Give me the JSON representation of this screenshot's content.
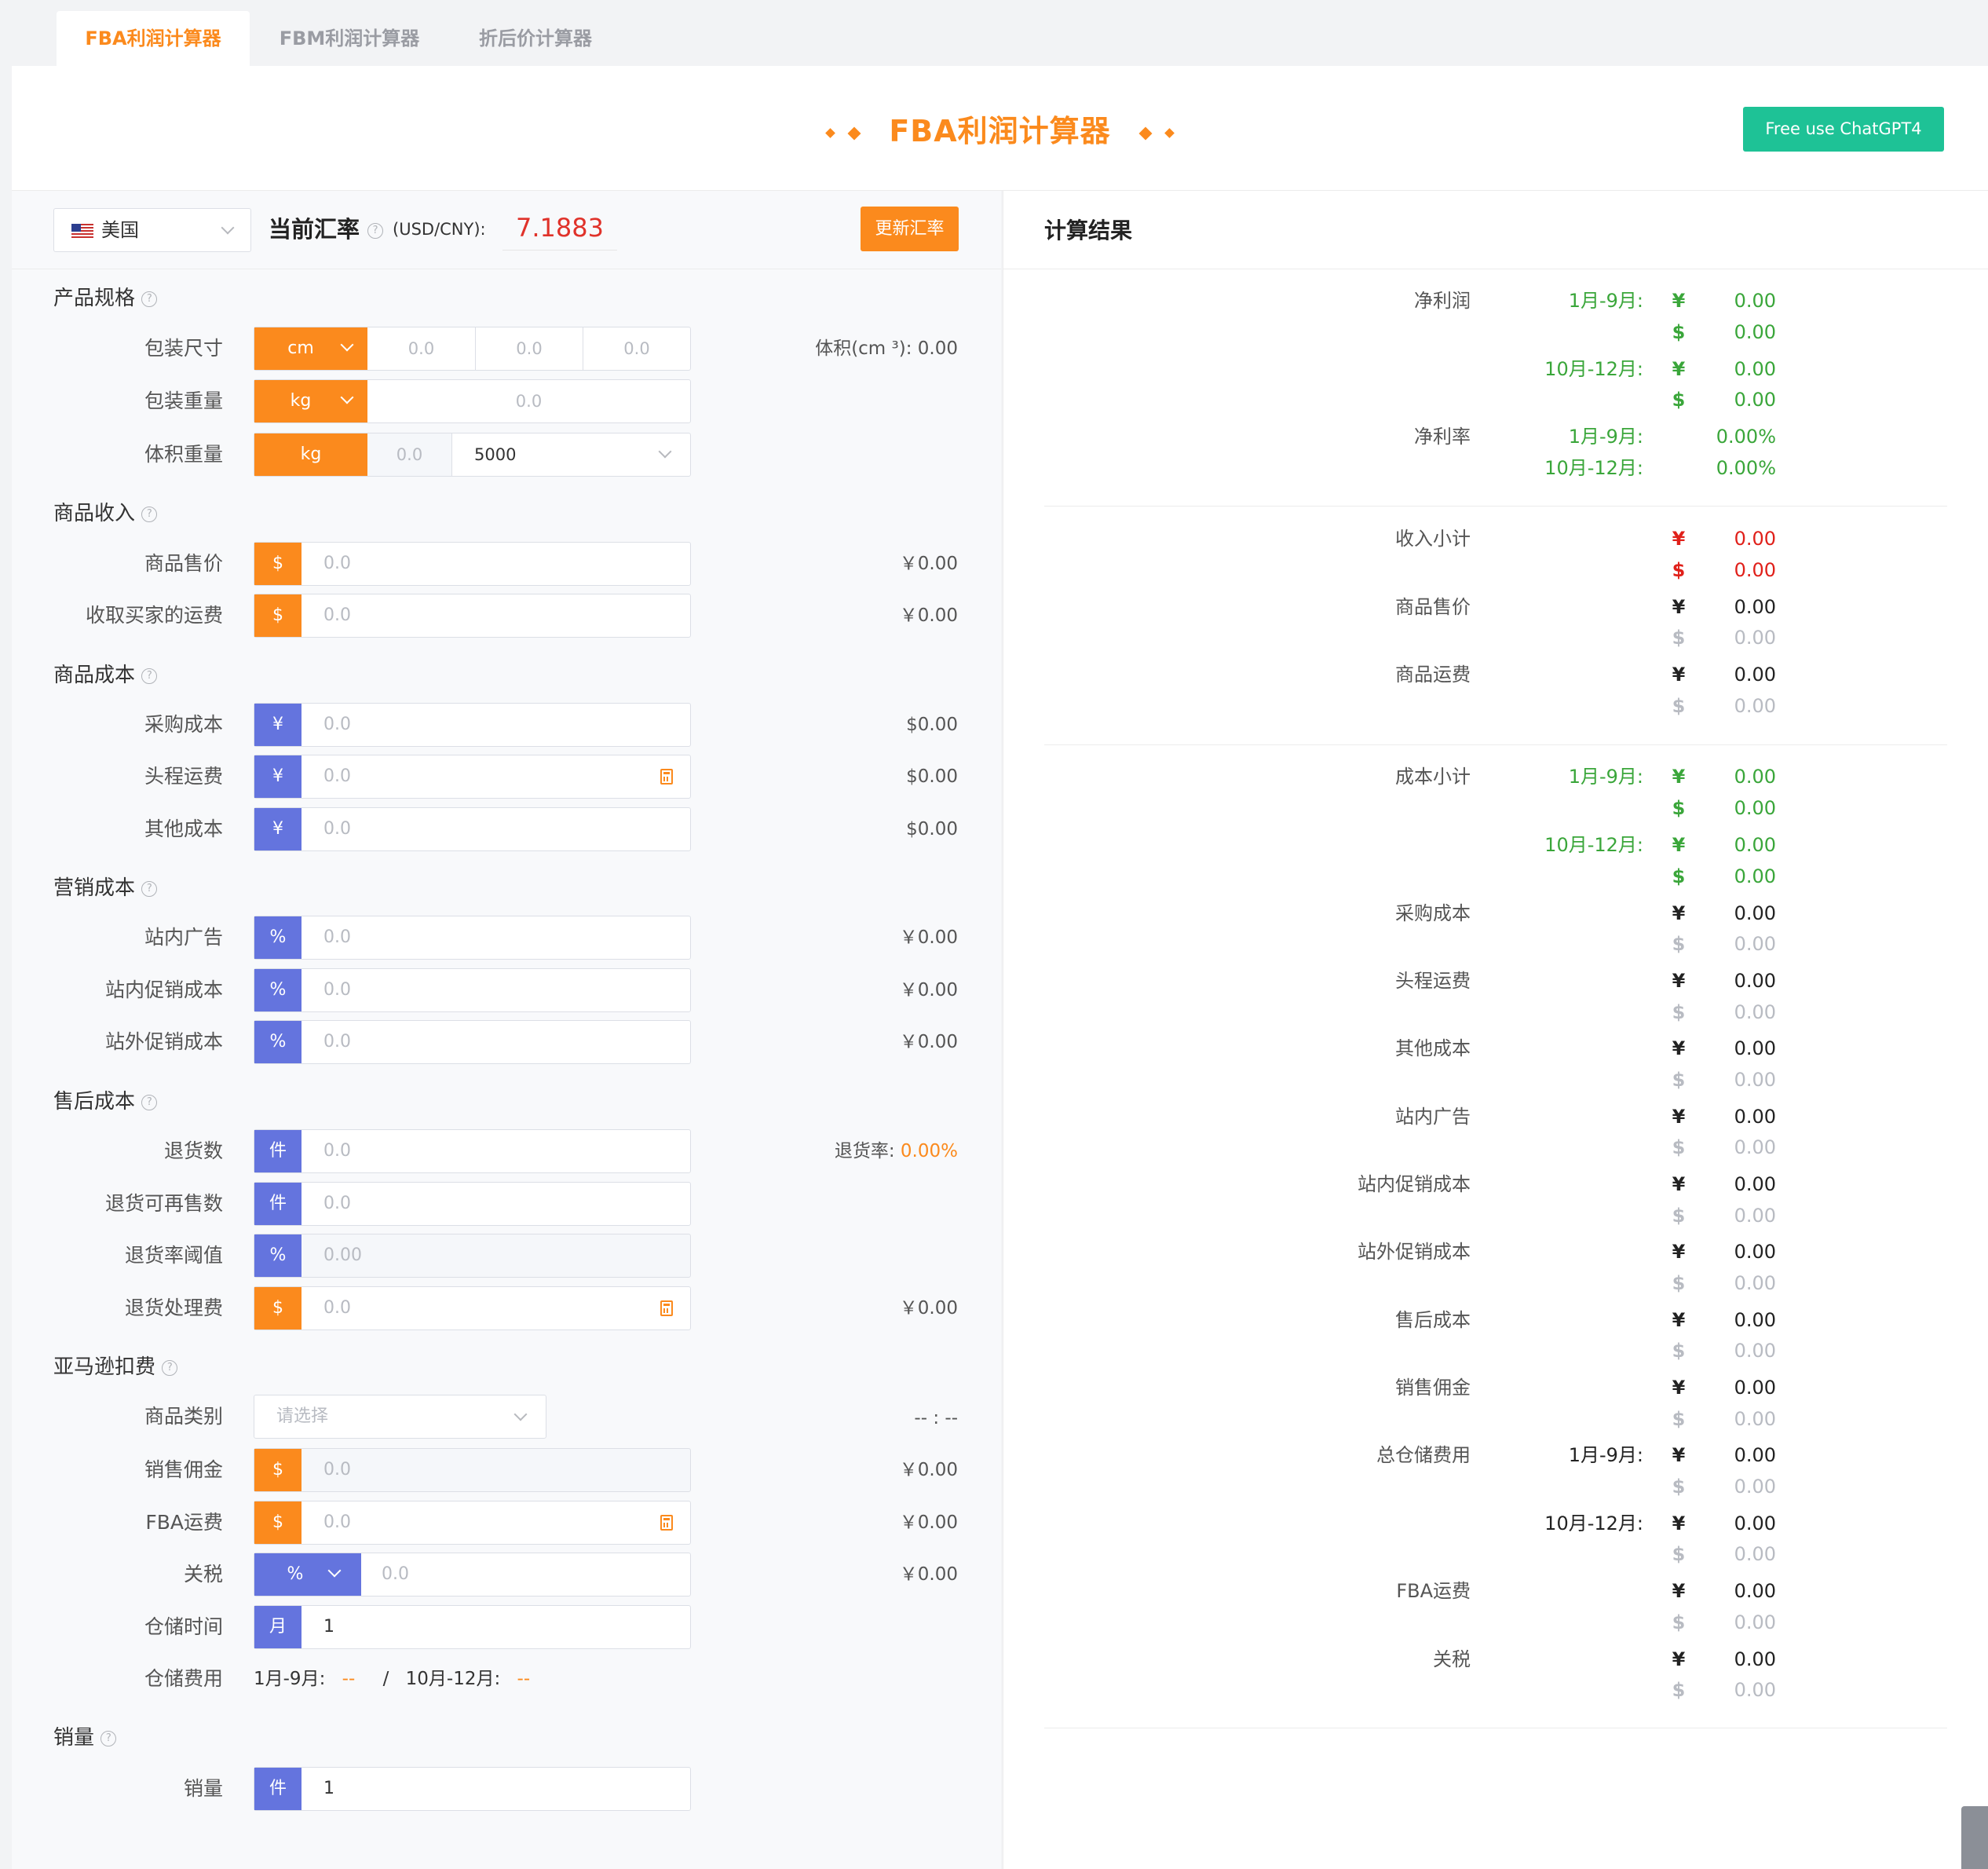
{
  "tabs": [
    {
      "label": "FBA利润计算器"
    },
    {
      "label": "FBM利润计算器"
    },
    {
      "label": "折后价计算器"
    }
  ],
  "header": {
    "title": "FBA利润计算器",
    "gpt_button": "Free use ChatGPT4"
  },
  "rate": {
    "country": "美国",
    "label": "当前汇率",
    "unit": "(USD/CNY):",
    "value": "7.1883",
    "update_button": "更新汇率"
  },
  "results": {
    "title": "计算结果"
  },
  "form": {
    "spec": {
      "title": "产品规格",
      "package_size": {
        "label": "包装尺寸",
        "unit": "cm",
        "values": [
          "0.0",
          "0.0",
          "0.0"
        ],
        "volume": "体积(cm ³): 0.00"
      },
      "package_weight": {
        "label": "包装重量",
        "unit": "kg",
        "value": "0.0"
      },
      "volume_weight": {
        "label": "体积重量",
        "unit": "kg",
        "value": "0.0",
        "divisor": "5000"
      }
    },
    "income": {
      "title": "商品收入",
      "rows": [
        {
          "label": "商品售价",
          "symbol": "$",
          "placeholder": "0.0",
          "result": "￥0.00"
        },
        {
          "label": "收取买家的运费",
          "symbol": "$",
          "placeholder": "0.0",
          "result": "￥0.00"
        }
      ]
    },
    "cost": {
      "title": "商品成本",
      "rows": [
        {
          "label": "采购成本",
          "symbol": "¥",
          "placeholder": "0.0",
          "result": "$0.00"
        },
        {
          "label": "头程运费",
          "symbol": "¥",
          "placeholder": "0.0",
          "result": "$0.00"
        },
        {
          "label": "其他成本",
          "symbol": "¥",
          "placeholder": "0.0",
          "result": "$0.00"
        }
      ]
    },
    "marketing": {
      "title": "营销成本",
      "rows": [
        {
          "label": "站内广告",
          "symbol": "%",
          "placeholder": "0.0",
          "result": "￥0.00"
        },
        {
          "label": "站内促销成本",
          "symbol": "%",
          "placeholder": "0.0",
          "result": "￥0.00"
        },
        {
          "label": "站外促销成本",
          "symbol": "%",
          "placeholder": "0.0",
          "result": "￥0.00"
        }
      ]
    },
    "after_sales": {
      "title": "售后成本",
      "rows": [
        {
          "label": "退货数",
          "symbol": "件",
          "placeholder": "0.0"
        },
        {
          "label": "退货可再售数",
          "symbol": "件",
          "placeholder": "0.0"
        },
        {
          "label": "退货率阈值",
          "symbol": "%",
          "placeholder": "0.00"
        },
        {
          "label": "退货处理费",
          "symbol": "$",
          "placeholder": "0.0",
          "result": "￥0.00"
        }
      ],
      "return_rate_label": "退货率:",
      "return_rate_value": "0.00%"
    },
    "amazon": {
      "title": "亚马逊扣费",
      "category": {
        "label": "商品类别",
        "placeholder": "请选择",
        "result": "-- : --"
      },
      "commission": {
        "label": "销售佣金",
        "symbol": "$",
        "placeholder": "0.0",
        "result": "￥0.00"
      },
      "fba_fee": {
        "label": "FBA运费",
        "symbol": "$",
        "placeholder": "0.0",
        "result": "￥0.00"
      },
      "tariff": {
        "label": "关税",
        "symbol": "%",
        "placeholder": "0.0",
        "result": "￥0.00"
      },
      "storage_time": {
        "label": "仓储时间",
        "symbol": "月",
        "value": "1"
      },
      "storage_fee": {
        "label": "仓储费用",
        "p1": "1月-9月:",
        "v1": "--",
        "sep": "/",
        "p2": "10月-12月:",
        "v2": "--"
      }
    },
    "sales": {
      "title": "销量",
      "row": {
        "label": "销量",
        "symbol": "件",
        "value": "1"
      }
    }
  },
  "result_rows": {
    "net_profit": {
      "label": "净利润",
      "p1": "1月-9月:",
      "p2": "10月-12月:",
      "cny": "¥",
      "usd": "$",
      "v": "0.00"
    },
    "net_margin": {
      "label": "净利率",
      "p1": "1月-9月:",
      "p2": "10月-12月:",
      "v": "0.00%"
    },
    "income_sub": {
      "label": "收入小计",
      "cny": "¥",
      "usd": "$",
      "v": "0.00"
    },
    "sale_price": {
      "label": "商品售价",
      "cny": "¥",
      "usd": "$",
      "v": "0.00"
    },
    "freight": {
      "label": "商品运费",
      "cny": "¥",
      "usd": "$",
      "v": "0.00"
    },
    "cost_sub": {
      "label": "成本小计",
      "p1": "1月-9月:",
      "p2": "10月-12月:",
      "cny": "¥",
      "usd": "$",
      "v": "0.00"
    },
    "items": [
      {
        "label": "采购成本",
        "cny": "¥",
        "usd": "$",
        "v": "0.00"
      },
      {
        "label": "头程运费",
        "cny": "¥",
        "usd": "$",
        "v": "0.00"
      },
      {
        "label": "其他成本",
        "cny": "¥",
        "usd": "$",
        "v": "0.00"
      },
      {
        "label": "站内广告",
        "cny": "¥",
        "usd": "$",
        "v": "0.00"
      },
      {
        "label": "站内促销成本",
        "cny": "¥",
        "usd": "$",
        "v": "0.00"
      },
      {
        "label": "站外促销成本",
        "cny": "¥",
        "usd": "$",
        "v": "0.00"
      },
      {
        "label": "售后成本",
        "cny": "¥",
        "usd": "$",
        "v": "0.00"
      },
      {
        "label": "销售佣金",
        "cny": "¥",
        "usd": "$",
        "v": "0.00"
      }
    ],
    "storage": {
      "label": "总仓储费用",
      "p1": "1月-9月:",
      "p2": "10月-12月:",
      "cny": "¥",
      "usd": "$",
      "v": "0.00"
    },
    "fba": {
      "label": "FBA运费",
      "cny": "¥",
      "usd": "$",
      "v": "0.00"
    },
    "tariff": {
      "label": "关税",
      "cny": "¥",
      "usd": "$",
      "v": "0.00"
    }
  },
  "colors": {
    "accent": "#fb8a1d",
    "blue_addon": "#6474de",
    "green": "#3aa63a",
    "red": "#e0201a",
    "gpt": "#1ec296"
  }
}
